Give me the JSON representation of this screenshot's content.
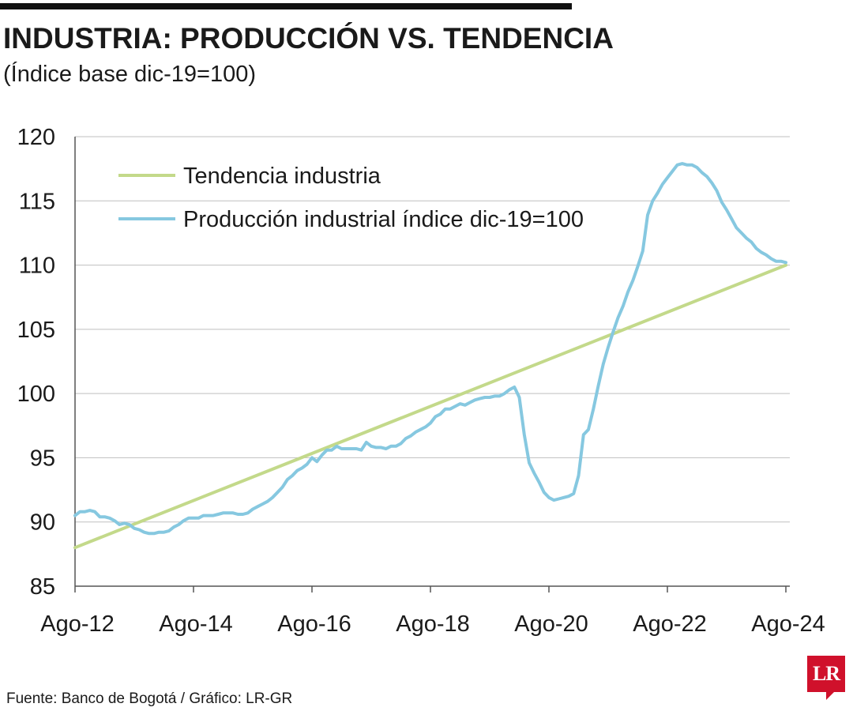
{
  "title": "INDUSTRIA: PRODUCCIÓN VS. TENDENCIA",
  "subtitle": "(Índice base dic-19=100)",
  "source": "Fuente: Banco de Bogotá / Gráfico: LR-GR",
  "logo_text": "LR",
  "colors": {
    "trend": "#c3d98a",
    "production": "#86c8e0",
    "grid": "#bfbfbf",
    "axis": "#555555",
    "logo": "#d0112b"
  },
  "chart_data": {
    "type": "line",
    "ylim": [
      85,
      120
    ],
    "yticks": [
      85,
      90,
      95,
      100,
      105,
      110,
      115,
      120
    ],
    "x_range": [
      "2012-08",
      "2024-08"
    ],
    "xtick_labels": [
      "Ago-12",
      "Ago-14",
      "Ago-16",
      "Ago-18",
      "Ago-20",
      "Ago-22",
      "Ago-24"
    ],
    "legend_position": "top-left",
    "grid": true,
    "series": [
      {
        "name": "Tendencia industria",
        "color": "#c3d98a",
        "points": [
          [
            "2012-08",
            88.0
          ],
          [
            "2024-08",
            110.0
          ]
        ]
      },
      {
        "name": "Producción industrial índice dic-19=100",
        "color": "#86c8e0",
        "points": [
          [
            "2012-08",
            90.5
          ],
          [
            "2012-09",
            90.8
          ],
          [
            "2012-10",
            90.8
          ],
          [
            "2012-11",
            90.9
          ],
          [
            "2012-12",
            90.8
          ],
          [
            "2013-01",
            90.4
          ],
          [
            "2013-02",
            90.4
          ],
          [
            "2013-03",
            90.3
          ],
          [
            "2013-04",
            90.1
          ],
          [
            "2013-05",
            89.8
          ],
          [
            "2013-06",
            89.9
          ],
          [
            "2013-07",
            89.8
          ],
          [
            "2013-08",
            89.5
          ],
          [
            "2013-09",
            89.4
          ],
          [
            "2013-10",
            89.2
          ],
          [
            "2013-11",
            89.1
          ],
          [
            "2013-12",
            89.1
          ],
          [
            "2014-01",
            89.2
          ],
          [
            "2014-02",
            89.2
          ],
          [
            "2014-03",
            89.3
          ],
          [
            "2014-04",
            89.6
          ],
          [
            "2014-05",
            89.8
          ],
          [
            "2014-06",
            90.1
          ],
          [
            "2014-07",
            90.3
          ],
          [
            "2014-08",
            90.3
          ],
          [
            "2014-09",
            90.3
          ],
          [
            "2014-10",
            90.5
          ],
          [
            "2014-11",
            90.5
          ],
          [
            "2014-12",
            90.5
          ],
          [
            "2015-01",
            90.6
          ],
          [
            "2015-02",
            90.7
          ],
          [
            "2015-03",
            90.7
          ],
          [
            "2015-04",
            90.7
          ],
          [
            "2015-05",
            90.6
          ],
          [
            "2015-06",
            90.6
          ],
          [
            "2015-07",
            90.7
          ],
          [
            "2015-08",
            91.0
          ],
          [
            "2015-09",
            91.2
          ],
          [
            "2015-10",
            91.4
          ],
          [
            "2015-11",
            91.6
          ],
          [
            "2015-12",
            91.9
          ],
          [
            "2016-01",
            92.3
          ],
          [
            "2016-02",
            92.7
          ],
          [
            "2016-03",
            93.3
          ],
          [
            "2016-04",
            93.6
          ],
          [
            "2016-05",
            94.0
          ],
          [
            "2016-06",
            94.2
          ],
          [
            "2016-07",
            94.5
          ],
          [
            "2016-08",
            95.0
          ],
          [
            "2016-09",
            94.7
          ],
          [
            "2016-10",
            95.2
          ],
          [
            "2016-11",
            95.6
          ],
          [
            "2016-12",
            95.6
          ],
          [
            "2017-01",
            95.9
          ],
          [
            "2017-02",
            95.7
          ],
          [
            "2017-03",
            95.7
          ],
          [
            "2017-04",
            95.7
          ],
          [
            "2017-05",
            95.7
          ],
          [
            "2017-06",
            95.6
          ],
          [
            "2017-07",
            96.2
          ],
          [
            "2017-08",
            95.9
          ],
          [
            "2017-09",
            95.8
          ],
          [
            "2017-10",
            95.8
          ],
          [
            "2017-11",
            95.7
          ],
          [
            "2017-12",
            95.9
          ],
          [
            "2018-01",
            95.9
          ],
          [
            "2018-02",
            96.1
          ],
          [
            "2018-03",
            96.5
          ],
          [
            "2018-04",
            96.7
          ],
          [
            "2018-05",
            97.0
          ],
          [
            "2018-06",
            97.2
          ],
          [
            "2018-07",
            97.4
          ],
          [
            "2018-08",
            97.7
          ],
          [
            "2018-09",
            98.2
          ],
          [
            "2018-10",
            98.4
          ],
          [
            "2018-11",
            98.8
          ],
          [
            "2018-12",
            98.8
          ],
          [
            "2019-01",
            99.0
          ],
          [
            "2019-02",
            99.2
          ],
          [
            "2019-03",
            99.1
          ],
          [
            "2019-04",
            99.3
          ],
          [
            "2019-05",
            99.5
          ],
          [
            "2019-06",
            99.6
          ],
          [
            "2019-07",
            99.7
          ],
          [
            "2019-08",
            99.7
          ],
          [
            "2019-09",
            99.8
          ],
          [
            "2019-10",
            99.8
          ],
          [
            "2019-11",
            100.0
          ],
          [
            "2019-12",
            100.3
          ],
          [
            "2020-01",
            100.5
          ],
          [
            "2020-02",
            99.7
          ],
          [
            "2020-03",
            96.8
          ],
          [
            "2020-04",
            94.6
          ],
          [
            "2020-05",
            93.8
          ],
          [
            "2020-06",
            93.1
          ],
          [
            "2020-07",
            92.3
          ],
          [
            "2020-08",
            91.9
          ],
          [
            "2020-09",
            91.7
          ],
          [
            "2020-10",
            91.8
          ],
          [
            "2020-11",
            91.9
          ],
          [
            "2020-12",
            92.0
          ],
          [
            "2021-01",
            92.2
          ],
          [
            "2021-02",
            93.6
          ],
          [
            "2021-03",
            96.8
          ],
          [
            "2021-04",
            97.2
          ],
          [
            "2021-05",
            98.8
          ],
          [
            "2021-06",
            100.6
          ],
          [
            "2021-07",
            102.3
          ],
          [
            "2021-08",
            103.6
          ],
          [
            "2021-09",
            104.8
          ],
          [
            "2021-10",
            105.9
          ],
          [
            "2021-11",
            106.8
          ],
          [
            "2021-12",
            107.9
          ],
          [
            "2022-01",
            108.8
          ],
          [
            "2022-02",
            109.9
          ],
          [
            "2022-03",
            111.1
          ],
          [
            "2022-04",
            113.9
          ],
          [
            "2022-05",
            115.0
          ],
          [
            "2022-06",
            115.6
          ],
          [
            "2022-07",
            116.3
          ],
          [
            "2022-08",
            116.8
          ],
          [
            "2022-09",
            117.3
          ],
          [
            "2022-10",
            117.8
          ],
          [
            "2022-11",
            117.9
          ],
          [
            "2022-12",
            117.8
          ],
          [
            "2023-01",
            117.8
          ],
          [
            "2023-02",
            117.6
          ],
          [
            "2023-03",
            117.2
          ],
          [
            "2023-04",
            116.9
          ],
          [
            "2023-05",
            116.4
          ],
          [
            "2023-06",
            115.8
          ],
          [
            "2023-07",
            114.9
          ],
          [
            "2023-08",
            114.3
          ],
          [
            "2023-09",
            113.6
          ],
          [
            "2023-10",
            112.9
          ],
          [
            "2023-11",
            112.5
          ],
          [
            "2023-12",
            112.1
          ],
          [
            "2024-01",
            111.8
          ],
          [
            "2024-02",
            111.3
          ],
          [
            "2024-03",
            111.0
          ],
          [
            "2024-04",
            110.8
          ],
          [
            "2024-05",
            110.5
          ],
          [
            "2024-06",
            110.3
          ],
          [
            "2024-07",
            110.3
          ],
          [
            "2024-08",
            110.2
          ]
        ]
      }
    ]
  }
}
